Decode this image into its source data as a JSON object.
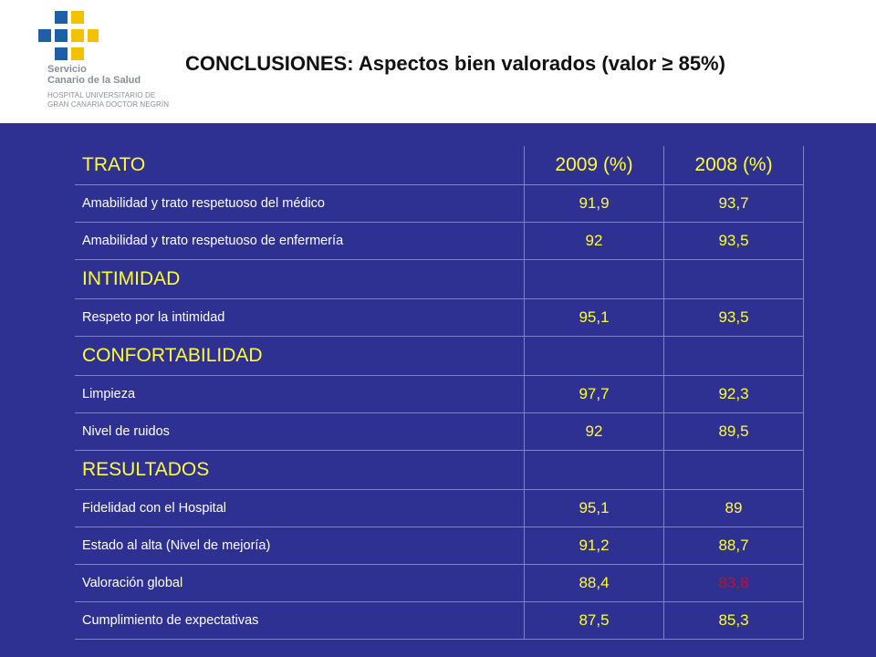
{
  "header": {
    "logo": {
      "icon": "servicio-canario-salud-logo-icon",
      "line1": "Servicio",
      "line2": "Canario de la Salud",
      "line3": "HOSPITAL UNIVERSITARIO DE",
      "line4": "GRAN CANARIA DOCTOR NEGRÍN"
    },
    "title": "CONCLUSIONES: Aspectos bien valorados (valor ≥ 85%)"
  },
  "table": {
    "columns": [
      "TRATO",
      "2009 (%)",
      "2008 (%)"
    ],
    "sections": [
      {
        "rows": [
          {
            "label": "Amabilidad y trato respetuoso del médico",
            "y2009": "91,9",
            "y2008": "93,7"
          },
          {
            "label": "Amabilidad y trato respetuoso de enfermería",
            "y2009": "92",
            "y2008": "93,5"
          }
        ]
      },
      {
        "title": "INTIMIDAD",
        "rows": [
          {
            "label": "Respeto por la intimidad",
            "y2009": "95,1",
            "y2008": "93,5"
          }
        ]
      },
      {
        "title": "CONFORTABILIDAD",
        "rows": [
          {
            "label": "Limpieza",
            "y2009": "97,7",
            "y2008": "92,3"
          },
          {
            "label": "Nivel de ruidos",
            "y2009": "92",
            "y2008": "89,5"
          }
        ]
      },
      {
        "title": "RESULTADOS",
        "rows": [
          {
            "label": "Fidelidad con el Hospital",
            "y2009": "95,1",
            "y2008": "89"
          },
          {
            "label": "Estado al alta (Nivel de mejoría)",
            "y2009": "91,2",
            "y2008": "88,7"
          },
          {
            "label": "Valoración global",
            "y2009": "88,4",
            "y2008": "83,8",
            "y2008_color": "#C0102C"
          },
          {
            "label": "Cumplimiento de expectativas",
            "y2009": "87,5",
            "y2008": "85,3"
          }
        ]
      }
    ]
  },
  "colors": {
    "background": "#2E3192",
    "category_text": "#FFFF33",
    "value_text": "#FFFF33",
    "highlight_red": "#C0102C"
  }
}
